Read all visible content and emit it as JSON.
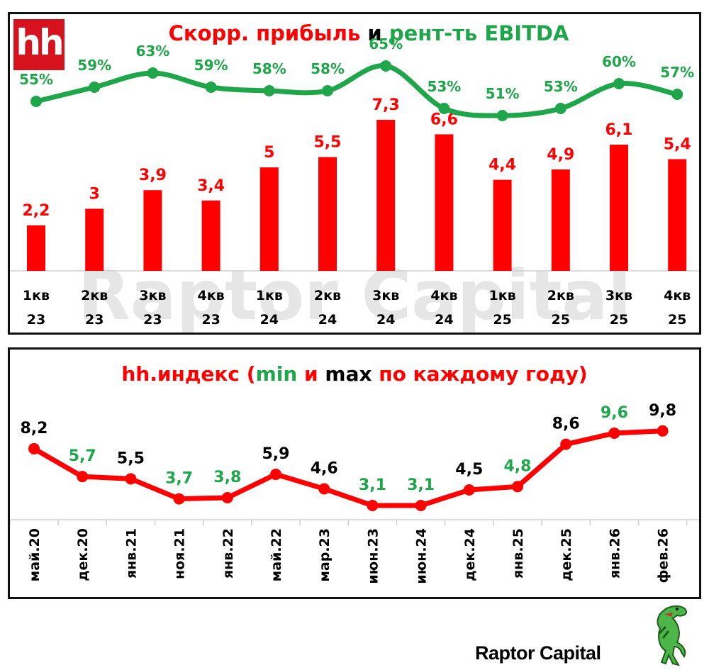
{
  "colors": {
    "red": "#ff0000",
    "green": "#1fa64a",
    "black": "#000000",
    "watermark": "#e6e6e6",
    "hh_logo_bg": "#d6121f"
  },
  "logo": {
    "text": "hh"
  },
  "top_chart": {
    "title_parts": [
      {
        "text": "Скорр. прибыль",
        "color": "red"
      },
      {
        "text": " и ",
        "color": "black"
      },
      {
        "text": "рент-ть EBITDA",
        "color": "green"
      }
    ],
    "watermark": "Raptor Capital"
  },
  "bottom_chart": {
    "title_parts": [
      {
        "text": "hh.индекс (",
        "color": "red"
      },
      {
        "text": "min",
        "color": "green"
      },
      {
        "text": " и ",
        "color": "red"
      },
      {
        "text": "max",
        "color": "black"
      },
      {
        "text": " по каждому году)",
        "color": "red"
      }
    ]
  },
  "footer": {
    "brand": "Raptor Capital",
    "mascot": "raptor-dinosaur-icon"
  },
  "chart_data": [
    {
      "type": "bar",
      "title": "Скорр. прибыль и рент-ть EBITDA",
      "categories": [
        "1кв 23",
        "2кв 23",
        "3кв 23",
        "4кв 23",
        "1кв 24",
        "2кв 24",
        "3кв 24",
        "4кв 24",
        "1кв 25",
        "2кв 25",
        "3кв 25",
        "4кв 25"
      ],
      "category_lines": [
        [
          "1кв",
          "23"
        ],
        [
          "2кв",
          "23"
        ],
        [
          "3кв",
          "23"
        ],
        [
          "4кв",
          "23"
        ],
        [
          "1кв",
          "24"
        ],
        [
          "2кв",
          "24"
        ],
        [
          "3кв",
          "24"
        ],
        [
          "4кв",
          "24"
        ],
        [
          "1кв",
          "25"
        ],
        [
          "2кв",
          "25"
        ],
        [
          "3кв",
          "25"
        ],
        [
          "4кв",
          "25"
        ]
      ],
      "series": [
        {
          "name": "Скорр. прибыль",
          "type": "bar",
          "color": "#ff0000",
          "values": [
            2.2,
            3,
            3.9,
            3.4,
            5,
            5.5,
            7.3,
            6.6,
            4.4,
            4.9,
            6.1,
            5.4
          ],
          "labels": [
            "2,2",
            "3",
            "3,9",
            "3,4",
            "5",
            "5,5",
            "7,3",
            "6,6",
            "4,4",
            "4,9",
            "6,1",
            "5,4"
          ]
        },
        {
          "name": "рент-ть EBITDA",
          "type": "line",
          "color": "#1fa64a",
          "unit": "%",
          "values": [
            55,
            59,
            63,
            59,
            58,
            58,
            65,
            53,
            51,
            53,
            60,
            57
          ],
          "labels": [
            "55%",
            "59%",
            "63%",
            "59%",
            "58%",
            "58%",
            "65%",
            "53%",
            "51%",
            "53%",
            "60%",
            "57%"
          ]
        }
      ],
      "xlabel": "",
      "ylabel": "",
      "grid": false,
      "legend": "none"
    },
    {
      "type": "line",
      "title": "hh.индекс (min и max по каждому году)",
      "categories": [
        "май.20",
        "дек.20",
        "янв.21",
        "ноя.21",
        "янв.22",
        "май.22",
        "мар.23",
        "июн.23",
        "июн.24",
        "дек.24",
        "янв.25",
        "дек.25",
        "янв.26",
        "фев.26"
      ],
      "series": [
        {
          "name": "hh.индекс",
          "color": "#ff0000",
          "values": [
            8.2,
            5.7,
            5.5,
            3.7,
            3.8,
            5.9,
            4.6,
            3.1,
            3.1,
            4.5,
            4.8,
            8.6,
            9.6,
            9.8
          ],
          "labels": [
            "8,2",
            "5,7",
            "5,5",
            "3,7",
            "3,8",
            "5,9",
            "4,6",
            "3,1",
            "3,1",
            "4,5",
            "4,8",
            "8,6",
            "9,6",
            "9,8"
          ],
          "label_colors": [
            "black",
            "green",
            "black",
            "green",
            "green",
            "black",
            "black",
            "green",
            "green",
            "black",
            "green",
            "black",
            "green",
            "black"
          ]
        }
      ],
      "xlabel": "",
      "ylabel": "",
      "grid": false,
      "legend": "none"
    }
  ]
}
